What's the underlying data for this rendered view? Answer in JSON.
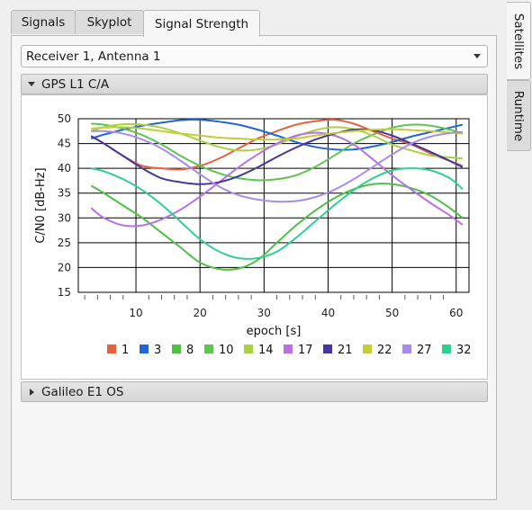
{
  "tabs": [
    {
      "label": "Signals",
      "active": false
    },
    {
      "label": "Skyplot",
      "active": false
    },
    {
      "label": "Signal Strength",
      "active": true
    }
  ],
  "side_tabs": [
    {
      "label": "Satellites",
      "active": true
    },
    {
      "label": "Runtime",
      "active": false
    }
  ],
  "receiver_select": {
    "value": "Receiver 1, Antenna 1"
  },
  "sections": {
    "gps": {
      "label": "GPS L1 C/A",
      "expanded": true
    },
    "galileo": {
      "label": "Galileo E1 OS",
      "expanded": false
    }
  },
  "chart_data": {
    "type": "line",
    "xlabel": "epoch [s]",
    "ylabel": "C/N0 [dB-Hz]",
    "xlim": [
      1,
      62
    ],
    "ylim": [
      15,
      50
    ],
    "xticks": [
      10,
      20,
      30,
      40,
      50,
      60
    ],
    "yticks": [
      15,
      20,
      25,
      30,
      35,
      40,
      45,
      50
    ],
    "grid": true,
    "legend": "bottom",
    "x": [
      3,
      5,
      8,
      11,
      14,
      17,
      20,
      23,
      26,
      29,
      32,
      35,
      38,
      41,
      44,
      47,
      50,
      53,
      56,
      59,
      61
    ],
    "series": [
      {
        "name": "1",
        "color": "#e8603c",
        "values": [
          46.5,
          45,
          42.5,
          40.5,
          40,
          39.8,
          40.5,
          42,
          44,
          46,
          47.5,
          48.8,
          49.5,
          49.8,
          49,
          47.5,
          46,
          44.8,
          43,
          41.5,
          40.5
        ]
      },
      {
        "name": "3",
        "color": "#1f66d6",
        "values": [
          46,
          46.8,
          47.8,
          48.6,
          49.2,
          49.7,
          49.8,
          49.4,
          48.8,
          47.8,
          46.6,
          45.3,
          44.3,
          43.8,
          43.8,
          44.4,
          45.3,
          46.4,
          47.3,
          48.2,
          48.8
        ]
      },
      {
        "name": "8",
        "color": "#4fbf45",
        "values": [
          36.5,
          35,
          32.5,
          30,
          27,
          24,
          21,
          19.7,
          19.8,
          21.5,
          25,
          28.5,
          31.5,
          34,
          35.8,
          36.8,
          36.8,
          36,
          34.5,
          32,
          30
        ]
      },
      {
        "name": "10",
        "color": "#5ec44e",
        "values": [
          49,
          48.8,
          48,
          46.7,
          44.8,
          42.5,
          40.5,
          39,
          38,
          37.6,
          37.8,
          38.6,
          40.3,
          42.6,
          45,
          46.8,
          48.2,
          48.8,
          48.6,
          47.8,
          47
        ]
      },
      {
        "name": "14",
        "color": "#a9d140",
        "values": [
          47.5,
          48.3,
          48.9,
          48.8,
          48.2,
          47,
          45.6,
          44.3,
          43.6,
          43.8,
          44.8,
          46.4,
          47.7,
          48.3,
          47.9,
          46.6,
          44.8,
          43.6,
          42.6,
          42.2,
          42
        ]
      },
      {
        "name": "17",
        "color": "#b870e6",
        "values": [
          32,
          30,
          28.5,
          28.5,
          29.7,
          31.7,
          34.3,
          37.2,
          40.2,
          42.8,
          45,
          46.6,
          47.2,
          46.6,
          44.8,
          41.8,
          38.6,
          35.7,
          33,
          30.5,
          28.6
        ]
      },
      {
        "name": "21",
        "color": "#44369e",
        "values": [
          46.5,
          45,
          42.5,
          40,
          38,
          37.2,
          36.8,
          37.2,
          38.4,
          40.2,
          42.3,
          44.2,
          45.8,
          47,
          47.8,
          47.7,
          46.6,
          45,
          43.3,
          41.5,
          40.2
        ]
      },
      {
        "name": "22",
        "color": "#c4cd35",
        "values": [
          48,
          48.2,
          48.3,
          48,
          47.5,
          47,
          46.6,
          46.2,
          46,
          45.8,
          45.8,
          46,
          46.6,
          47.1,
          47.5,
          47.8,
          47.9,
          47.7,
          47.5,
          47.2,
          47
        ]
      },
      {
        "name": "27",
        "color": "#a78cec",
        "values": [
          47.5,
          47.5,
          47,
          45.8,
          44,
          41.5,
          38.8,
          36.3,
          34.6,
          33.7,
          33.3,
          33.4,
          34.2,
          35.7,
          37.8,
          40.3,
          42.8,
          45,
          46.4,
          47.1,
          47.3
        ]
      },
      {
        "name": "32",
        "color": "#2ed08f",
        "values": [
          40,
          39.4,
          37.8,
          35.6,
          32.7,
          29.2,
          25.7,
          23.2,
          21.9,
          21.9,
          23.2,
          26,
          29.3,
          32.6,
          35.6,
          38,
          39.6,
          40,
          39.6,
          38,
          35.8
        ]
      }
    ]
  }
}
